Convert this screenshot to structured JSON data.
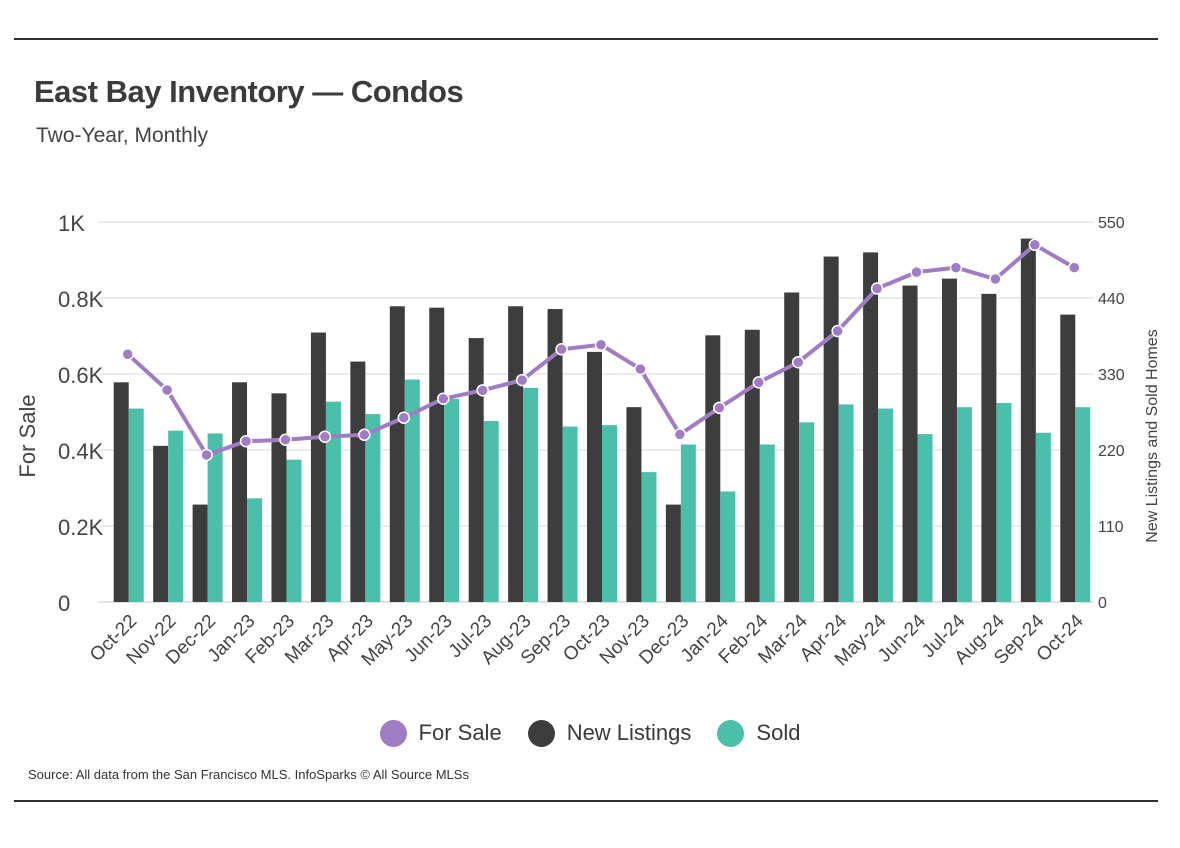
{
  "title": "East Bay Inventory — Condos",
  "subtitle": "Two-Year, Monthly",
  "source": "Source:  All data from the San Francisco MLS. InfoSparks © All Source MLSs",
  "colors": {
    "for_sale": "#a07cc5",
    "new_listings": "#3d3d3d",
    "sold": "#4bbfaa"
  },
  "chart_data": {
    "type": "bar",
    "categories": [
      "Oct-22",
      "Nov-22",
      "Dec-22",
      "Jan-23",
      "Feb-23",
      "Mar-23",
      "Apr-23",
      "May-23",
      "Jun-23",
      "Jul-23",
      "Aug-23",
      "Sep-23",
      "Oct-23",
      "Nov-23",
      "Dec-23",
      "Jan-24",
      "Feb-24",
      "Mar-24",
      "Apr-24",
      "May-24",
      "Jun-24",
      "Jul-24",
      "Aug-24",
      "Sep-24",
      "Oct-24"
    ],
    "series": [
      {
        "name": "For Sale",
        "kind": "line",
        "axis": "left",
        "values": [
          652,
          558,
          387,
          423,
          427,
          435,
          440,
          485,
          535,
          557,
          584,
          665,
          677,
          613,
          441,
          511,
          578,
          631,
          713,
          825,
          868,
          880,
          850,
          940,
          880
        ]
      },
      {
        "name": "New Listings",
        "kind": "bar",
        "axis": "right",
        "values": [
          318,
          226,
          141,
          318,
          302,
          390,
          348,
          428,
          426,
          382,
          428,
          424,
          362,
          282,
          141,
          386,
          394,
          448,
          500,
          506,
          458,
          468,
          446,
          526,
          416
        ]
      },
      {
        "name": "Sold",
        "kind": "bar",
        "axis": "right",
        "values": [
          280,
          248,
          244,
          150,
          206,
          290,
          272,
          322,
          294,
          262,
          310,
          254,
          256,
          188,
          228,
          160,
          228,
          260,
          286,
          280,
          243,
          282,
          288,
          245,
          282
        ]
      }
    ],
    "left_axis": {
      "label": "For Sale",
      "min": 0,
      "max": 1000,
      "ticks": [
        0,
        200,
        400,
        600,
        800,
        1000
      ],
      "tick_labels": [
        "0",
        "0.2K",
        "0.4K",
        "0.6K",
        "0.8K",
        "1K"
      ]
    },
    "right_axis": {
      "label": "New Listings and Sold Homes",
      "min": 0,
      "max": 550,
      "ticks": [
        0,
        110,
        220,
        330,
        440,
        550
      ],
      "tick_labels": [
        "0",
        "110",
        "220",
        "330",
        "440",
        "550"
      ]
    },
    "grid": true,
    "legend_position": "bottom"
  }
}
